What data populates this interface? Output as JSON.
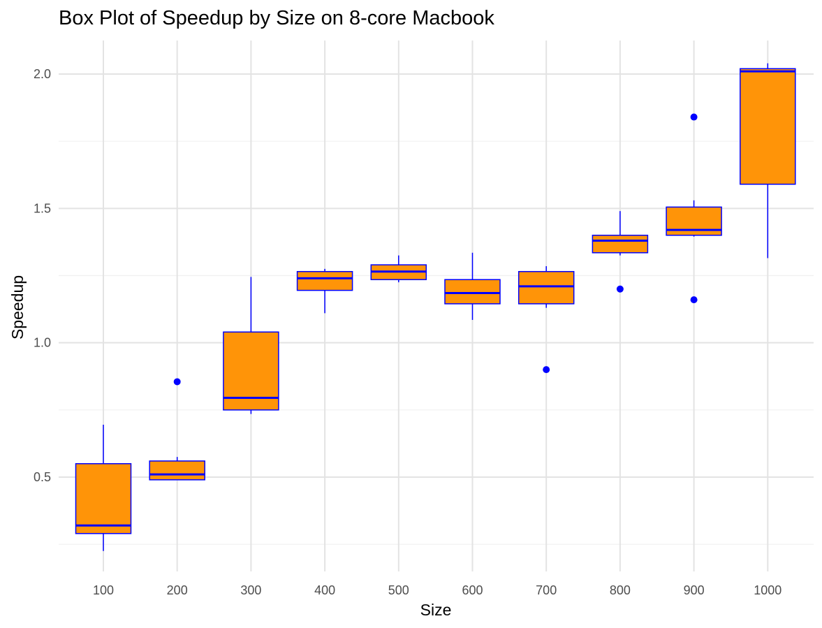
{
  "chart_data": {
    "type": "box",
    "title": "Box Plot of Speedup by Size on 8-core Macbook",
    "xlabel": "Size",
    "ylabel": "Speedup",
    "categories": [
      "100",
      "200",
      "300",
      "400",
      "500",
      "600",
      "700",
      "800",
      "900",
      "1000"
    ],
    "yticks": [
      0.5,
      1.0,
      1.5,
      2.0
    ],
    "ytick_labels": [
      "0.5",
      "1.0",
      "1.5",
      "2.0"
    ],
    "ylim": [
      0.15,
      2.1
    ],
    "grid": true,
    "legend": "none",
    "colors": {
      "box_fill": "#ff9408",
      "box_stroke": "#0000ff",
      "outlier": "#0000ff",
      "grid_major": "#e3e3e3",
      "grid_minor": "#f0f0f0"
    },
    "boxes": [
      {
        "category": "100",
        "min": 0.225,
        "q1": 0.29,
        "median": 0.32,
        "q3": 0.55,
        "max": 0.695,
        "outliers": []
      },
      {
        "category": "200",
        "min": 0.49,
        "q1": 0.49,
        "median": 0.51,
        "q3": 0.56,
        "max": 0.575,
        "outliers": [
          0.855
        ]
      },
      {
        "category": "300",
        "min": 0.735,
        "q1": 0.75,
        "median": 0.795,
        "q3": 1.04,
        "max": 1.245,
        "outliers": []
      },
      {
        "category": "400",
        "min": 1.11,
        "q1": 1.195,
        "median": 1.24,
        "q3": 1.265,
        "max": 1.275,
        "outliers": []
      },
      {
        "category": "500",
        "min": 1.225,
        "q1": 1.235,
        "median": 1.265,
        "q3": 1.29,
        "max": 1.325,
        "outliers": []
      },
      {
        "category": "600",
        "min": 1.085,
        "q1": 1.145,
        "median": 1.185,
        "q3": 1.235,
        "max": 1.335,
        "outliers": []
      },
      {
        "category": "700",
        "min": 1.13,
        "q1": 1.145,
        "median": 1.21,
        "q3": 1.265,
        "max": 1.285,
        "outliers": [
          0.9
        ]
      },
      {
        "category": "800",
        "min": 1.325,
        "q1": 1.335,
        "median": 1.38,
        "q3": 1.4,
        "max": 1.49,
        "outliers": [
          1.2
        ]
      },
      {
        "category": "900",
        "min": 1.395,
        "q1": 1.4,
        "median": 1.42,
        "q3": 1.505,
        "max": 1.53,
        "outliers": [
          1.84,
          1.16
        ]
      },
      {
        "category": "1000",
        "min": 1.315,
        "q1": 1.59,
        "median": 2.01,
        "q3": 2.02,
        "max": 2.04,
        "outliers": []
      }
    ]
  }
}
